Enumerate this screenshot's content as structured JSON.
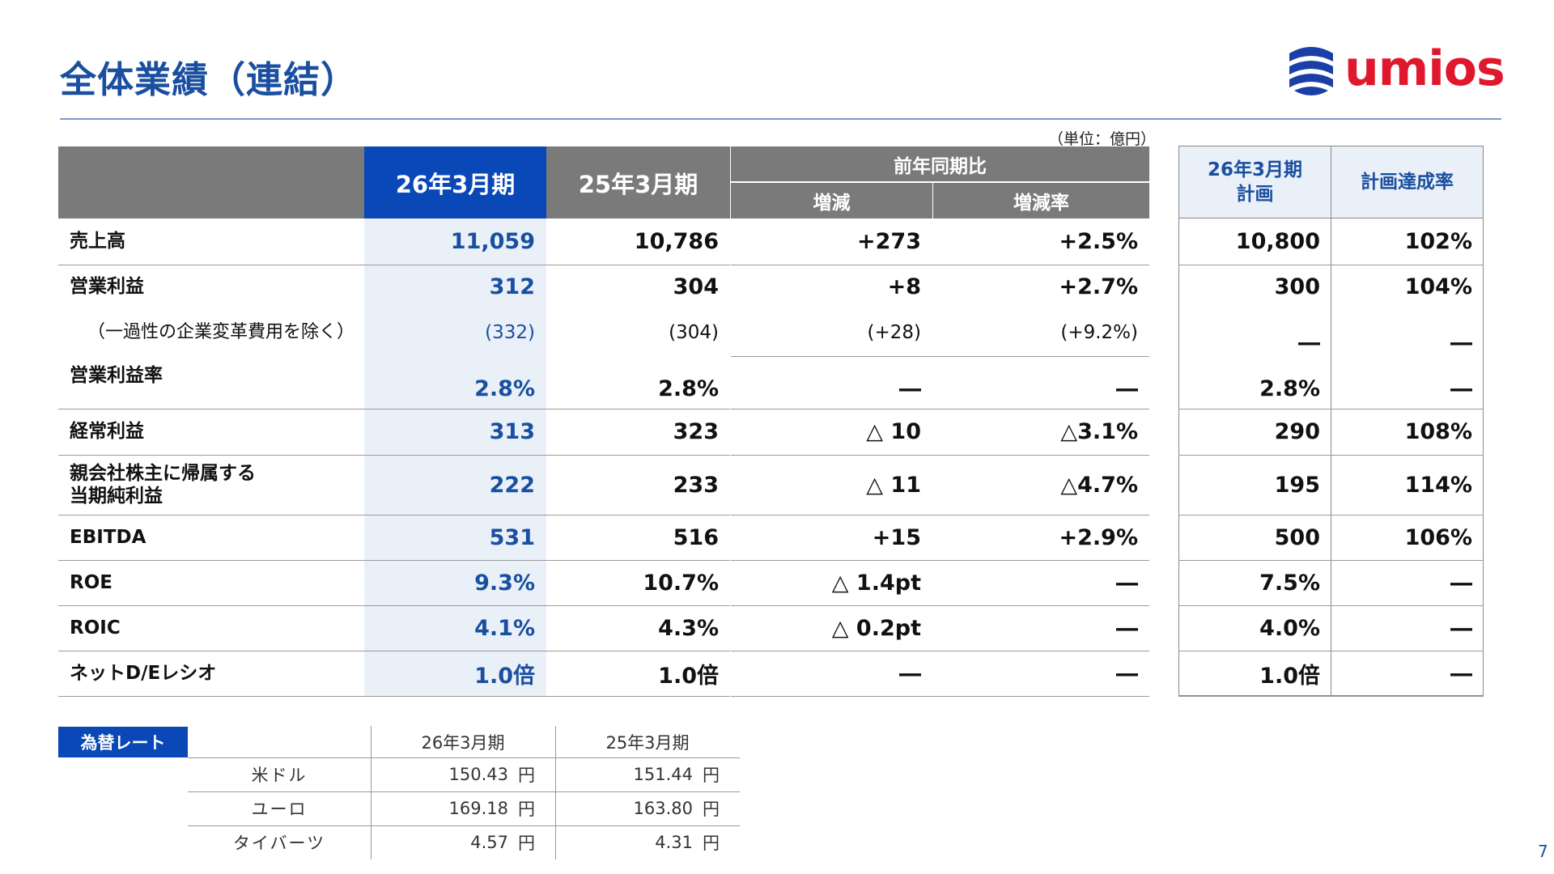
{
  "title": "全体業績（連結）",
  "logo_text": "umios",
  "unit": "（単位：億円）",
  "headers": {
    "col_fy26": "26年3月期",
    "col_fy25": "25年3月期",
    "yoy": "前年同期比",
    "change": "増減",
    "change_rate": "増減率",
    "plan": "26年3月期\n計画",
    "achievement": "計画達成率"
  },
  "rows": [
    {
      "label": "売上高",
      "fy26": "11,059",
      "fy25": "10,786",
      "change": "+273",
      "rate": "+2.5%",
      "plan": "10,800",
      "ach": "102%"
    },
    {
      "label": "営業利益",
      "fy26": "312",
      "fy25": "304",
      "change": "+8",
      "rate": "+2.7%",
      "plan": "300",
      "ach": "104%"
    },
    {
      "label": "（一過性の企業変革費用を除く）",
      "fy26": "(332)",
      "fy25": "(304)",
      "change": "(+28)",
      "rate": "(+9.2%)",
      "plan": "―",
      "ach": "―"
    },
    {
      "label": "営業利益率",
      "fy26": "2.8%",
      "fy25": "2.8%",
      "change": "―",
      "rate": "―",
      "plan": "2.8%",
      "ach": "―"
    },
    {
      "label": "経常利益",
      "fy26": "313",
      "fy25": "323",
      "change": "△ 10",
      "rate": "△3.1%",
      "plan": "290",
      "ach": "108%"
    },
    {
      "label": "親会社株主に帰属する\n当期純利益",
      "fy26": "222",
      "fy25": "233",
      "change": "△ 11",
      "rate": "△4.7%",
      "plan": "195",
      "ach": "114%"
    },
    {
      "label": "EBITDA",
      "fy26": "531",
      "fy25": "516",
      "change": "+15",
      "rate": "+2.9%",
      "plan": "500",
      "ach": "106%"
    },
    {
      "label": "ROE",
      "fy26": "9.3%",
      "fy25": "10.7%",
      "change": "△ 1.4pt",
      "rate": "―",
      "plan": "7.5%",
      "ach": "―"
    },
    {
      "label": "ROIC",
      "fy26": "4.1%",
      "fy25": "4.3%",
      "change": "△ 0.2pt",
      "rate": "―",
      "plan": "4.0%",
      "ach": "―"
    },
    {
      "label": "ネットD/Eレシオ",
      "fy26": "1.0倍",
      "fy25": "1.0倍",
      "change": "―",
      "rate": "―",
      "plan": "1.0倍",
      "ach": "―"
    }
  ],
  "fx": {
    "title": "為替レート",
    "col_fy26": "26年3月期",
    "col_fy25": "25年3月期",
    "yen": "円",
    "rows": [
      {
        "currency": "米ドル",
        "fy26": "150.43",
        "fy25": "151.44"
      },
      {
        "currency": "ユーロ",
        "fy26": "169.18",
        "fy25": "163.80"
      },
      {
        "currency": "タイバーツ",
        "fy26": "4.57",
        "fy25": "4.31"
      }
    ]
  },
  "page_number": "7",
  "colors": {
    "brand_blue": "#0a48b8",
    "title_blue": "#1a4fa0",
    "logo_red": "#e0182d",
    "header_grey": "#7a7a7a"
  }
}
